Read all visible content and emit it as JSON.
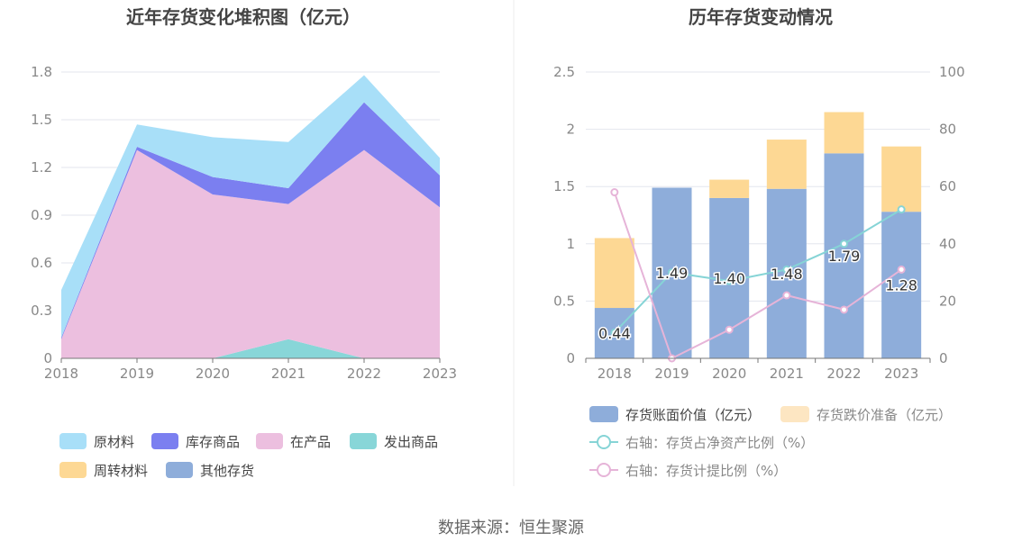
{
  "footer": {
    "source": "数据来源：恒生聚源"
  },
  "chart_data": [
    {
      "type": "area",
      "stacked": true,
      "title": "近年存货变化堆积图（亿元）",
      "categories": [
        "2018",
        "2019",
        "2020",
        "2021",
        "2022",
        "2023"
      ],
      "ylim": [
        0,
        1.8
      ],
      "yticks": [
        "0",
        "0.3",
        "0.6",
        "0.9",
        "1.2",
        "1.5",
        "1.8"
      ],
      "grid": true,
      "legend_position": "bottom",
      "series": [
        {
          "name": "原材料",
          "color": "#a8dff8",
          "values": [
            0.3,
            0.14,
            0.25,
            0.29,
            0.17,
            0.11
          ]
        },
        {
          "name": "库存商品",
          "color": "#7b7ff0",
          "values": [
            0.01,
            0.02,
            0.11,
            0.1,
            0.3,
            0.2
          ]
        },
        {
          "name": "在产品",
          "color": "#ecbfdf",
          "values": [
            0.12,
            1.31,
            1.03,
            0.85,
            1.31,
            0.95
          ]
        },
        {
          "name": "发出商品",
          "color": "#88d6d8",
          "values": [
            0.0,
            0.0,
            0.0,
            0.12,
            0.0,
            0.0
          ]
        },
        {
          "name": "周转材料",
          "color": "#fdd894",
          "values": [
            0,
            0,
            0,
            0,
            0,
            0
          ]
        },
        {
          "name": "其他存货",
          "color": "#8eadda",
          "values": [
            0,
            0,
            0,
            0,
            0,
            0
          ]
        }
      ]
    },
    {
      "type": "bar",
      "stacked": true,
      "title": "历年存货变动情况",
      "categories": [
        "2018",
        "2019",
        "2020",
        "2021",
        "2022",
        "2023"
      ],
      "ylim": [
        0,
        2.5
      ],
      "yticks": [
        "0",
        "0.5",
        "1",
        "1.5",
        "2",
        "2.5"
      ],
      "y2lim": [
        0,
        100
      ],
      "y2ticks": [
        "0",
        "20",
        "40",
        "60",
        "80",
        "100"
      ],
      "grid": true,
      "legend_position": "bottom",
      "bar_series": [
        {
          "name": "存货账面价值（亿元）",
          "color": "#8eadda",
          "values": [
            0.44,
            1.49,
            1.4,
            1.48,
            1.79,
            1.28
          ],
          "labels": [
            "0.44",
            "1.49",
            "1.40",
            "1.48",
            "1.79",
            "1.28"
          ]
        },
        {
          "name": "存货跌价准备（亿元）",
          "color": "#fdd894",
          "legend_color": "#fde6c2",
          "values": [
            0.61,
            0.0,
            0.16,
            0.43,
            0.36,
            0.57
          ]
        }
      ],
      "line_series": [
        {
          "name": "右轴：存货占净资产比例（%）",
          "color": "#86d4d6",
          "values": [
            9,
            30,
            27,
            31,
            40,
            52
          ]
        },
        {
          "name": "右轴：存货计提比例（%）",
          "color": "#e6b4d8",
          "values": [
            58,
            0,
            10,
            22,
            17,
            31
          ]
        }
      ]
    }
  ]
}
